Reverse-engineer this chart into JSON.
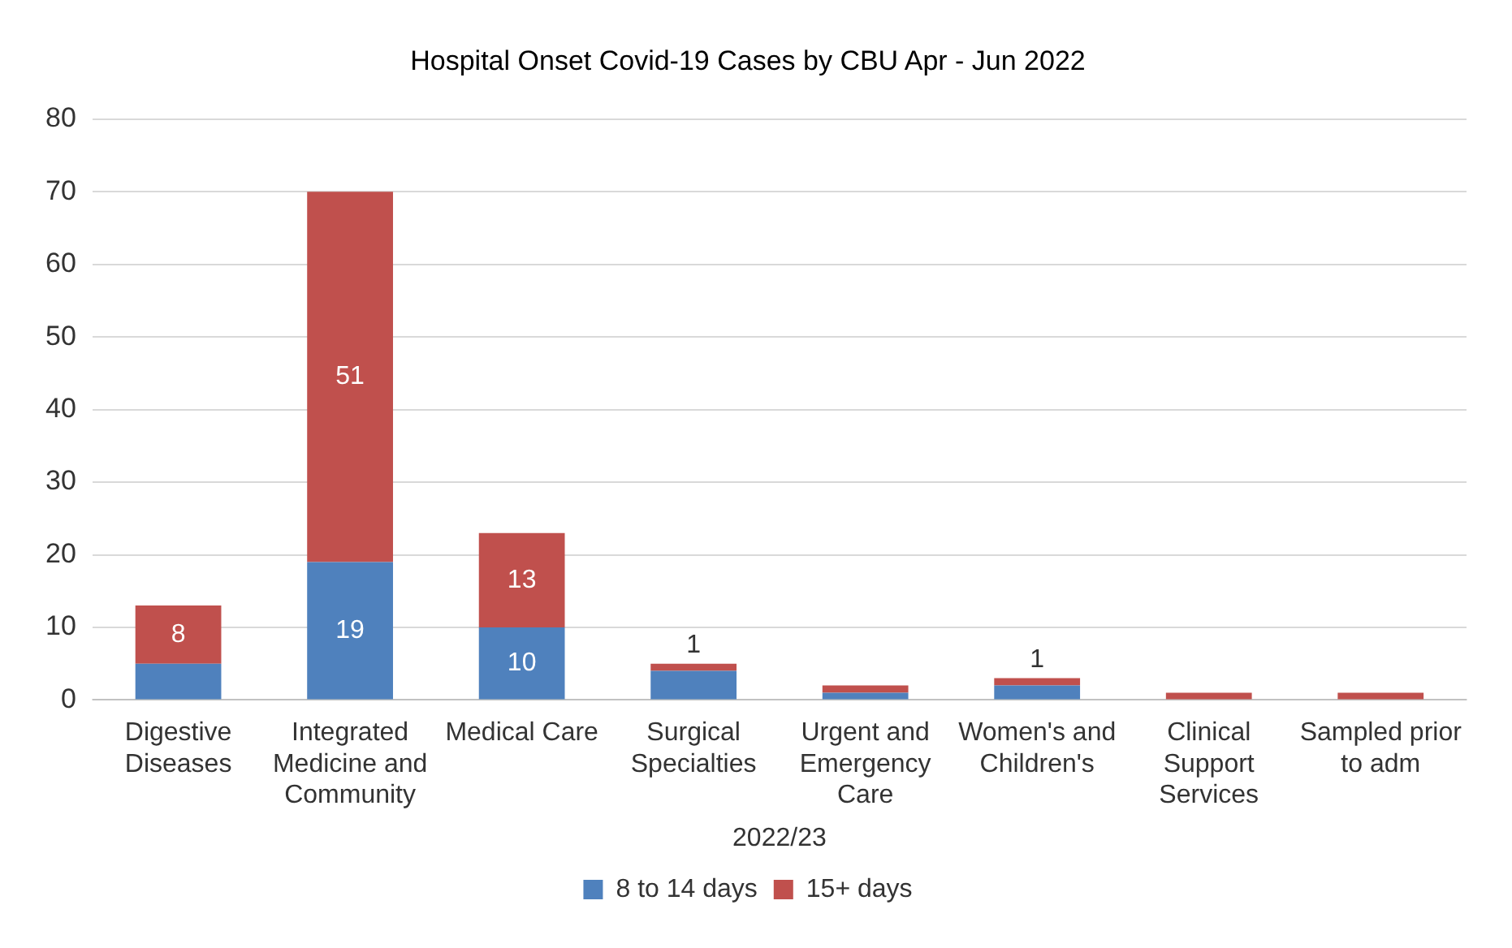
{
  "chart_data": {
    "type": "bar",
    "title": "Hospital Onset Covid-19 Cases by CBU Apr - Jun 2022",
    "xlabel": "2022/23",
    "categories": [
      "Digestive Diseases",
      "Integrated Medicine and Community",
      "Medical Care",
      "Surgical Specialties",
      "Urgent and Emergency Care",
      "Women's and Children's",
      "Clinical Support Services",
      "Sampled prior to adm"
    ],
    "stacked": true,
    "series": [
      {
        "name": "8 to 14 days",
        "color": "#4f81bd",
        "values": [
          5,
          19,
          10,
          4,
          1,
          2,
          0,
          0
        ],
        "value_labels": [
          null,
          "19",
          "10",
          null,
          null,
          null,
          null,
          null
        ]
      },
      {
        "name": "15+ days",
        "color": "#c0504d",
        "values": [
          8,
          51,
          13,
          1,
          1,
          1,
          1,
          1
        ],
        "value_labels": [
          "8",
          "51",
          "13",
          "1",
          null,
          "1",
          null,
          null
        ]
      }
    ],
    "ylim": [
      0,
      80
    ],
    "yticks": [
      0,
      10,
      20,
      30,
      40,
      50,
      60,
      70,
      80
    ],
    "grid": "y",
    "legend": "bottom"
  }
}
